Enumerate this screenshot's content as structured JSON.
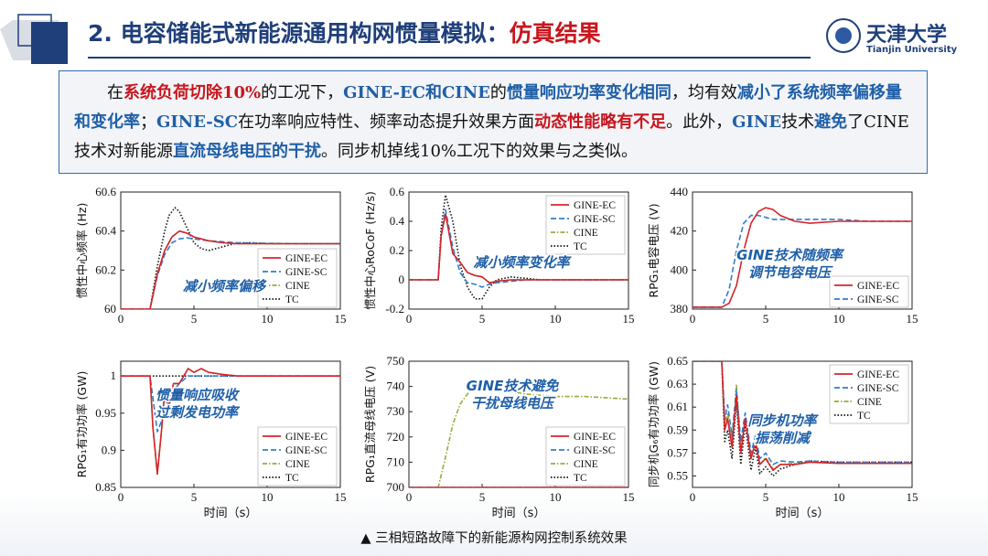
{
  "title": {
    "main": "2. 电容储能式新能源通用构网惯量模拟：",
    "highlight": "仿真结果"
  },
  "logo": {
    "cn": "天津大学",
    "en": "Tianjin University"
  },
  "summary": [
    {
      "t": "在",
      "s": "n"
    },
    {
      "t": "系统负荷切除10%",
      "s": "r"
    },
    {
      "t": "的工况下，",
      "s": "n"
    },
    {
      "t": "GINE-EC和CINE",
      "s": "b"
    },
    {
      "t": "的",
      "s": "n"
    },
    {
      "t": "惯量响应功率变化相同",
      "s": "b"
    },
    {
      "t": "，均有效",
      "s": "n"
    },
    {
      "t": "减小了系统频率偏移量和变化率",
      "s": "b"
    },
    {
      "t": "；",
      "s": "n"
    },
    {
      "t": "GINE-SC",
      "s": "b"
    },
    {
      "t": "在功率响应特性、频率动态提升效果方面",
      "s": "n"
    },
    {
      "t": "动态性能略有不足",
      "s": "r"
    },
    {
      "t": "。此外，",
      "s": "n"
    },
    {
      "t": "GINE",
      "s": "b"
    },
    {
      "t": "技术",
      "s": "n"
    },
    {
      "t": "避免",
      "s": "b"
    },
    {
      "t": "了CINE技术对新能源",
      "s": "n"
    },
    {
      "t": "直流母线电压的干扰",
      "s": "b"
    },
    {
      "t": "。同步机掉线10%工况下的效果与之类似。",
      "s": "n"
    }
  ],
  "caption": "▲ 三相短路故障下的新能源构网控制系统效果",
  "colors": {
    "GINE-EC": "#d4242b",
    "GINE-SC": "#2e7fd0",
    "CINE": "#9aaa3a",
    "TC": "#111111"
  },
  "chart_data": [
    {
      "type": "line",
      "ylabel": "惯性中心频率 (Hz)",
      "xlabel": "",
      "xlim": [
        0,
        15
      ],
      "ylim": [
        60,
        60.6
      ],
      "xticks": [
        "0",
        "5",
        "10",
        "15"
      ],
      "yticks": [
        "60",
        "60.2",
        "60.4",
        "60.6"
      ],
      "legend": [
        "GINE-EC",
        "GINE-SC",
        "CINE",
        "TC"
      ],
      "legend_position": "bottom-right",
      "annotation": "减小频率偏移",
      "series": [
        {
          "name": "GINE-EC",
          "x": [
            0,
            2,
            2.5,
            3,
            3.5,
            4,
            4.5,
            5,
            6,
            7,
            8,
            10,
            12,
            15
          ],
          "y": [
            60,
            60,
            60.18,
            60.3,
            60.37,
            60.4,
            60.39,
            60.37,
            60.35,
            60.34,
            60.335,
            60.335,
            60.335,
            60.335
          ]
        },
        {
          "name": "GINE-SC",
          "x": [
            0,
            2,
            2.5,
            3,
            3.5,
            4,
            4.5,
            5,
            6,
            7,
            8,
            10,
            12,
            15
          ],
          "y": [
            60,
            60,
            60.17,
            60.28,
            60.34,
            60.36,
            60.365,
            60.36,
            60.35,
            60.345,
            60.34,
            60.337,
            60.335,
            60.335
          ]
        },
        {
          "name": "CINE",
          "x": [
            0,
            2,
            2.5,
            3,
            3.5,
            4,
            4.5,
            5,
            6,
            7,
            8,
            10,
            12,
            15
          ],
          "y": [
            60,
            60,
            60.18,
            60.3,
            60.37,
            60.4,
            60.39,
            60.37,
            60.35,
            60.34,
            60.335,
            60.335,
            60.335,
            60.335
          ]
        },
        {
          "name": "TC",
          "x": [
            0,
            2,
            2.5,
            3,
            3.3,
            3.7,
            4,
            4.5,
            5,
            5.5,
            6,
            7,
            8,
            9,
            10,
            12,
            15
          ],
          "y": [
            60,
            60,
            60.22,
            60.4,
            60.48,
            60.52,
            60.5,
            60.42,
            60.34,
            60.31,
            60.3,
            60.32,
            60.34,
            60.34,
            60.335,
            60.335,
            60.335
          ]
        }
      ]
    },
    {
      "type": "line",
      "ylabel": "惯性中心RoCoF (Hz/s)",
      "xlabel": "",
      "xlim": [
        0,
        15
      ],
      "ylim": [
        -0.2,
        0.6
      ],
      "xticks": [
        "0",
        "5",
        "10",
        "15"
      ],
      "yticks": [
        "-0.2",
        "0",
        "0.2",
        "0.4",
        "0.6"
      ],
      "legend": [
        "GINE-EC",
        "GINE-SC",
        "CINE",
        "TC"
      ],
      "legend_position": "top-right",
      "annotation": "减小频率变化率",
      "series": [
        {
          "name": "GINE-EC",
          "x": [
            0,
            2,
            2.2,
            2.5,
            3,
            3.5,
            4,
            4.5,
            5,
            5.5,
            6,
            7,
            8,
            9,
            10,
            15
          ],
          "y": [
            0,
            0,
            0.3,
            0.45,
            0.18,
            0.12,
            0.05,
            0.03,
            0.02,
            -0.02,
            -0.01,
            0,
            0,
            0,
            0,
            0
          ]
        },
        {
          "name": "GINE-SC",
          "x": [
            0,
            2,
            2.2,
            2.5,
            3,
            3.5,
            4,
            4.5,
            5,
            5.5,
            6,
            7,
            8,
            9,
            10,
            15
          ],
          "y": [
            0,
            0,
            0.3,
            0.48,
            0.22,
            0.05,
            -0.02,
            -0.03,
            -0.05,
            -0.03,
            -0.02,
            -0.01,
            0,
            0,
            0,
            0
          ]
        },
        {
          "name": "CINE",
          "x": [
            0,
            2,
            2.2,
            2.5,
            3,
            3.5,
            4,
            4.5,
            5,
            5.5,
            6,
            7,
            8,
            9,
            10,
            15
          ],
          "y": [
            0,
            0,
            0.3,
            0.45,
            0.18,
            0.12,
            0.05,
            0.03,
            0.02,
            -0.02,
            -0.01,
            0,
            0,
            0,
            0,
            0
          ]
        },
        {
          "name": "TC",
          "x": [
            0,
            2,
            2.2,
            2.5,
            3,
            3.5,
            4,
            4.5,
            5,
            5.5,
            6,
            7,
            8,
            9,
            10,
            15
          ],
          "y": [
            0,
            0,
            0.35,
            0.58,
            0.4,
            0.1,
            -0.05,
            -0.13,
            -0.13,
            -0.05,
            0,
            0.02,
            0.01,
            0,
            0,
            0
          ]
        }
      ]
    },
    {
      "type": "line",
      "ylabel": "RPG₁电容电压 (V)",
      "xlabel": "",
      "xlim": [
        0,
        15
      ],
      "ylim": [
        380,
        440
      ],
      "xticks": [
        "0",
        "5",
        "10",
        "15"
      ],
      "yticks": [
        "380",
        "400",
        "420",
        "440"
      ],
      "legend": [
        "GINE-EC",
        "GINE-SC"
      ],
      "legend_position": "bottom-right",
      "annotation": "GINE技术随频率\n调节电容电压",
      "series": [
        {
          "name": "GINE-EC",
          "x": [
            0,
            2,
            2.5,
            3,
            3.5,
            4,
            4.5,
            5,
            5.5,
            6,
            7,
            8,
            10,
            12,
            15
          ],
          "y": [
            381,
            381,
            383,
            392,
            410,
            424,
            430,
            432,
            431,
            428,
            425,
            424,
            425,
            425,
            425
          ]
        },
        {
          "name": "GINE-SC",
          "x": [
            0,
            2,
            2.5,
            3,
            3.5,
            4,
            4.5,
            5,
            5.5,
            6,
            7,
            8,
            10,
            12,
            15
          ],
          "y": [
            381,
            381,
            390,
            410,
            424,
            428,
            428,
            427,
            426,
            426,
            426,
            426,
            426,
            425,
            425
          ]
        }
      ]
    },
    {
      "type": "line",
      "ylabel": "RPG₁有功功率 (GW)",
      "xlabel": "时间（s）",
      "xlim": [
        0,
        15
      ],
      "ylim": [
        0.85,
        1.02
      ],
      "xticks": [
        "0",
        "5",
        "10",
        "15"
      ],
      "yticks": [
        "0.85",
        "0.9",
        "0.95",
        "1"
      ],
      "legend": [
        "GINE-EC",
        "GINE-SC",
        "CINE",
        "TC"
      ],
      "legend_position": "bottom-right",
      "annotation": "惯量响应吸收\n过剩发电功率",
      "series": [
        {
          "name": "GINE-EC",
          "x": [
            0,
            2,
            2.2,
            2.5,
            2.8,
            3,
            3.3,
            3.6,
            4,
            4.3,
            4.6,
            5,
            5.5,
            6,
            7,
            8,
            9,
            10,
            15
          ],
          "y": [
            1,
            1,
            0.93,
            0.868,
            0.93,
            0.98,
            0.96,
            0.99,
            0.99,
            1.0,
            1.01,
            1.005,
            1.01,
            1.005,
            1.002,
            1,
            1,
            1,
            1
          ]
        },
        {
          "name": "GINE-SC",
          "x": [
            0,
            2,
            2.2,
            2.5,
            2.8,
            3,
            3.3,
            3.6,
            4,
            4.3,
            4.6,
            5,
            5.5,
            6,
            7,
            8,
            9,
            10,
            15
          ],
          "y": [
            1,
            1,
            0.97,
            0.925,
            0.94,
            0.97,
            0.96,
            0.98,
            0.99,
            0.995,
            1.0,
            1.0,
            1.0,
            1.0,
            1,
            1,
            1,
            1,
            1
          ]
        },
        {
          "name": "CINE",
          "x": [
            0,
            2,
            2.2,
            2.5,
            2.8,
            3,
            3.3,
            3.6,
            4,
            4.3,
            4.6,
            5,
            5.5,
            6,
            7,
            8,
            9,
            10,
            15
          ],
          "y": [
            1,
            1,
            0.93,
            0.868,
            0.93,
            0.98,
            0.96,
            0.99,
            0.99,
            1.0,
            1.01,
            1.005,
            1.01,
            1.005,
            1.002,
            1,
            1,
            1,
            1
          ]
        },
        {
          "name": "TC",
          "x": [
            0,
            15
          ],
          "y": [
            1,
            1
          ]
        }
      ]
    },
    {
      "type": "line",
      "ylabel": "RPG₁直流母线电压 (V)",
      "xlabel": "时间（s）",
      "xlim": [
        0,
        15
      ],
      "ylim": [
        700,
        750
      ],
      "xticks": [
        "0",
        "5",
        "10",
        "15"
      ],
      "yticks": [
        "700",
        "710",
        "720",
        "730",
        "740",
        "750"
      ],
      "legend": [
        "GINE-EC",
        "GINE-SC",
        "CINE",
        "TC"
      ],
      "legend_position": "bottom-right",
      "annotation": "GINE技术避免\n干扰母线电压",
      "series": [
        {
          "name": "GINE-EC",
          "x": [
            0,
            15
          ],
          "y": [
            700,
            700
          ]
        },
        {
          "name": "GINE-SC",
          "x": [
            0,
            15
          ],
          "y": [
            700,
            700
          ]
        },
        {
          "name": "CINE",
          "x": [
            0,
            2,
            2.5,
            3,
            3.5,
            4,
            4.5,
            5,
            5.5,
            6,
            7,
            8,
            10,
            12,
            15
          ],
          "y": [
            700,
            700,
            712,
            725,
            733,
            737,
            740,
            741,
            740,
            739,
            738,
            737,
            736,
            736,
            735
          ]
        },
        {
          "name": "TC",
          "x": [
            0,
            15
          ],
          "y": [
            700,
            700
          ]
        }
      ]
    },
    {
      "type": "line",
      "ylabel": "同步机G₆有功功率 (GW)",
      "xlabel": "时间（s）",
      "xlim": [
        0,
        15
      ],
      "ylim": [
        0.54,
        0.65
      ],
      "xticks": [
        "0",
        "5",
        "10",
        "15"
      ],
      "yticks": [
        "0.55",
        "0.57",
        "0.59",
        "0.61",
        "0.63",
        "0.65"
      ],
      "legend": [
        "GINE-EC",
        "GINE-SC",
        "CINE",
        "TC"
      ],
      "legend_position": "top-right",
      "annotation": "同步机功率\n振荡削减",
      "series": [
        {
          "name": "GINE-EC",
          "x": [
            0,
            2,
            2.2,
            2.4,
            2.7,
            3,
            3.3,
            3.6,
            4,
            4.3,
            4.6,
            5,
            5.5,
            6,
            7,
            8,
            10,
            12,
            15
          ],
          "y": [
            0.65,
            0.65,
            0.59,
            0.6,
            0.575,
            0.62,
            0.57,
            0.6,
            0.565,
            0.58,
            0.56,
            0.565,
            0.555,
            0.56,
            0.56,
            0.562,
            0.561,
            0.561,
            0.561
          ]
        },
        {
          "name": "GINE-SC",
          "x": [
            0,
            2,
            2.2,
            2.4,
            2.7,
            3,
            3.3,
            3.6,
            4,
            4.3,
            4.6,
            5,
            5.5,
            6,
            7,
            8,
            10,
            12,
            15
          ],
          "y": [
            0.65,
            0.65,
            0.6,
            0.612,
            0.585,
            0.625,
            0.58,
            0.605,
            0.57,
            0.585,
            0.565,
            0.57,
            0.56,
            0.563,
            0.562,
            0.563,
            0.562,
            0.562,
            0.562
          ]
        },
        {
          "name": "CINE",
          "x": [
            0,
            2,
            2.2,
            2.4,
            2.7,
            3,
            3.3,
            3.6,
            4,
            4.3,
            4.6,
            5,
            5.5,
            6,
            7,
            8,
            10,
            12,
            15
          ],
          "y": [
            0.65,
            0.65,
            0.595,
            0.605,
            0.58,
            0.63,
            0.575,
            0.6,
            0.565,
            0.58,
            0.56,
            0.566,
            0.556,
            0.56,
            0.561,
            0.562,
            0.561,
            0.561,
            0.561
          ]
        },
        {
          "name": "TC",
          "x": [
            0,
            2,
            2.2,
            2.4,
            2.7,
            3,
            3.3,
            3.6,
            4,
            4.3,
            4.6,
            5,
            5.5,
            6,
            7,
            8,
            10,
            12,
            15
          ],
          "y": [
            0.65,
            0.65,
            0.58,
            0.59,
            0.565,
            0.615,
            0.56,
            0.595,
            0.555,
            0.575,
            0.552,
            0.558,
            0.55,
            0.556,
            0.56,
            0.563,
            0.562,
            0.562,
            0.562
          ]
        }
      ]
    }
  ]
}
